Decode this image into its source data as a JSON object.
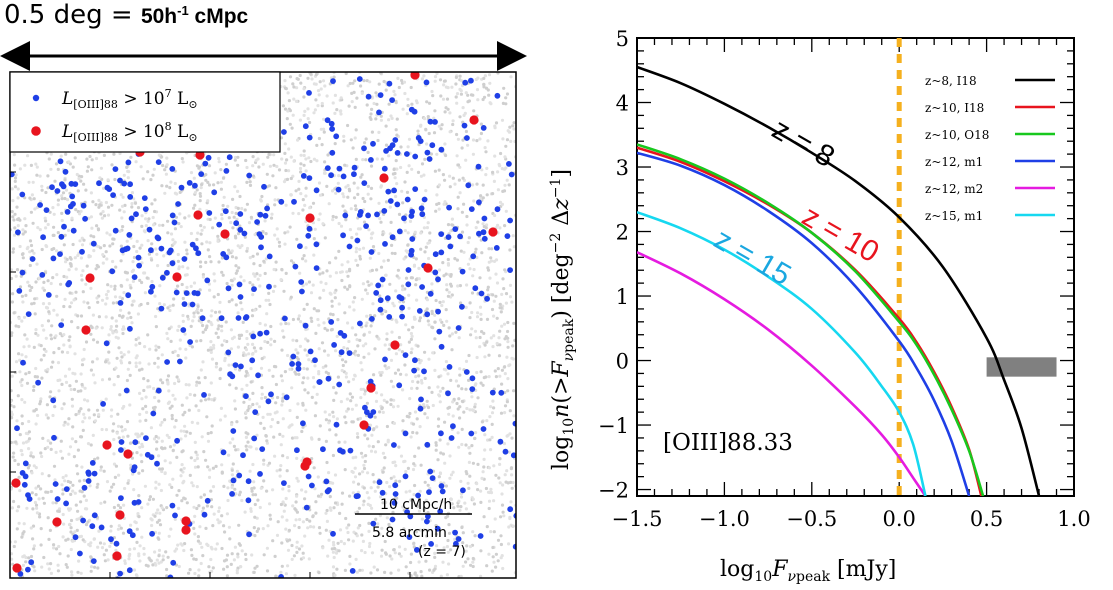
{
  "header": {
    "scale_label": "0.5 deg =",
    "scale_value": "50h",
    "scale_exp": "-1",
    "scale_unit": "cMpc"
  },
  "map_panel": {
    "legend": [
      {
        "label": "L[OIII]88 > 10^7 L⊙",
        "color": "#1f3fe6"
      },
      {
        "label": "L[OIII]88 > 10^8 L⊙",
        "color": "#e8141e"
      }
    ],
    "scalebar_top": "10 cMpc/h",
    "scalebar_bottom": "5.8 arcmin",
    "redshift_note": "(z = 7)",
    "background_color": "#d8d8d8"
  },
  "chart_data": {
    "type": "line",
    "xlabel": "log10 Fνpeak [mJy]",
    "ylabel": "log10 n(>Fνpeak) [deg^-2 Δz^-1]",
    "xlim": [
      -1.5,
      1.0
    ],
    "ylim": [
      -2.1,
      5.0
    ],
    "x_ticks": [
      "−1.5",
      "−1.0",
      "−0.5",
      "0.0",
      "0.5",
      "1.0"
    ],
    "y_ticks": [
      "−2",
      "−1",
      "0",
      "1",
      "2",
      "3",
      "4",
      "5"
    ],
    "annotation": "[OIII]88.33",
    "curve_labels": [
      {
        "text": "z = 8",
        "color": "#000000"
      },
      {
        "text": "z = 10",
        "color": "#e8141e"
      },
      {
        "text": "z = 15",
        "color": "#1aa7e0"
      }
    ],
    "vertical_line": {
      "x": 0.0,
      "color": "#f5b01e"
    },
    "shaded_box": {
      "x": [
        0.5,
        0.9
      ],
      "y": [
        -0.25,
        0.05
      ],
      "color": "#808080"
    },
    "series": [
      {
        "name": "z~8, I18",
        "color": "#000000",
        "x": [
          -1.5,
          -1.25,
          -1.0,
          -0.75,
          -0.5,
          -0.25,
          0.0,
          0.25,
          0.5,
          0.6,
          0.7,
          0.8
        ],
        "y": [
          4.55,
          4.3,
          3.98,
          3.62,
          3.22,
          2.78,
          2.22,
          1.45,
          0.35,
          -0.3,
          -1.05,
          -2.1
        ]
      },
      {
        "name": "z~10, I18",
        "color": "#e8141e",
        "x": [
          -1.5,
          -1.25,
          -1.0,
          -0.75,
          -0.5,
          -0.25,
          0.0,
          0.1,
          0.2,
          0.3,
          0.4,
          0.47
        ],
        "y": [
          3.3,
          3.08,
          2.78,
          2.42,
          1.98,
          1.4,
          0.65,
          0.28,
          -0.18,
          -0.72,
          -1.38,
          -2.1
        ]
      },
      {
        "name": "z~10, O18",
        "color": "#18c81e",
        "x": [
          -1.5,
          -1.25,
          -1.0,
          -0.75,
          -0.5,
          -0.25,
          0.0,
          0.1,
          0.2,
          0.3,
          0.4,
          0.48
        ],
        "y": [
          3.35,
          3.12,
          2.82,
          2.44,
          1.98,
          1.38,
          0.6,
          0.24,
          -0.22,
          -0.76,
          -1.4,
          -2.1
        ]
      },
      {
        "name": "z~12, m1",
        "color": "#1f3fe6",
        "x": [
          -1.5,
          -1.25,
          -1.0,
          -0.75,
          -0.5,
          -0.25,
          0.0,
          0.1,
          0.2,
          0.3,
          0.4
        ],
        "y": [
          3.22,
          3.02,
          2.72,
          2.32,
          1.82,
          1.15,
          0.3,
          -0.12,
          -0.62,
          -1.25,
          -2.1
        ]
      },
      {
        "name": "z~12, m2",
        "color": "#e51be0",
        "x": [
          -1.5,
          -1.25,
          -1.0,
          -0.75,
          -0.5,
          -0.25,
          -0.1,
          0.0,
          0.08,
          0.15
        ],
        "y": [
          1.68,
          1.35,
          0.95,
          0.48,
          -0.08,
          -0.72,
          -1.15,
          -1.5,
          -1.82,
          -2.1
        ]
      },
      {
        "name": "z~15, m1",
        "color": "#16d8f0",
        "x": [
          -1.5,
          -1.25,
          -1.0,
          -0.75,
          -0.5,
          -0.25,
          -0.1,
          0.0,
          0.08,
          0.15
        ],
        "y": [
          2.3,
          2.05,
          1.72,
          1.3,
          0.8,
          0.12,
          -0.4,
          -0.8,
          -1.3,
          -2.1
        ]
      }
    ]
  }
}
